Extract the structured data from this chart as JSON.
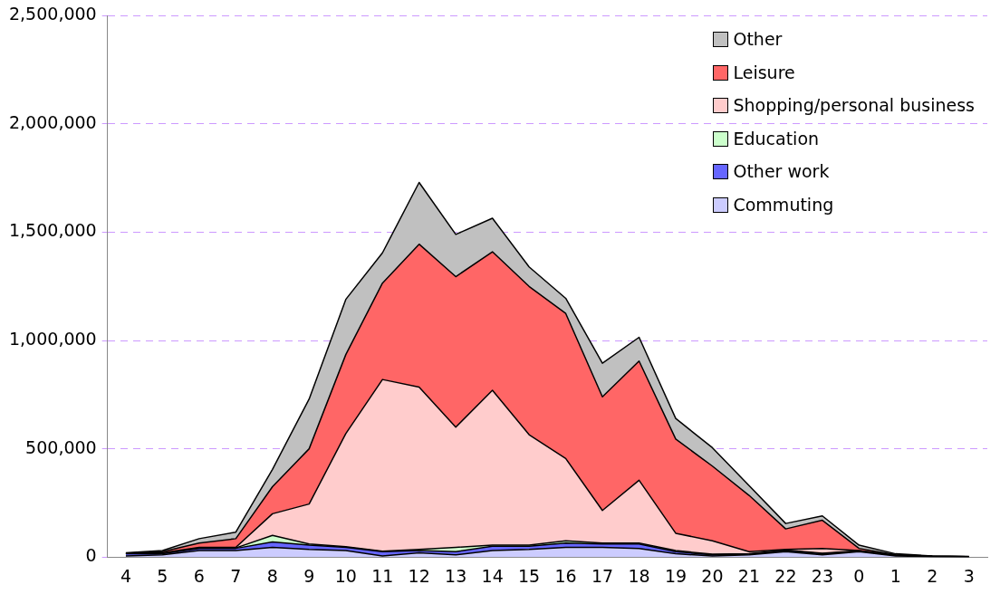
{
  "chart_data": {
    "type": "area",
    "stacked": true,
    "categories": [
      "4",
      "5",
      "6",
      "7",
      "8",
      "9",
      "10",
      "11",
      "12",
      "13",
      "14",
      "15",
      "16",
      "17",
      "18",
      "19",
      "20",
      "21",
      "22",
      "23",
      "0",
      "1",
      "2",
      "3"
    ],
    "ylim": [
      0,
      2500000
    ],
    "yticks": [
      0,
      {
        "value": 500000,
        "label": "500,000"
      },
      {
        "value": 1000000,
        "label": "1,000,000"
      },
      {
        "value": 1500000,
        "label": "1,500,000"
      },
      {
        "value": 2000000,
        "label": "2,000,000"
      },
      {
        "value": 2500000,
        "label": "2,500,000"
      }
    ],
    "grid": "y",
    "legend": "top right",
    "series": [
      {
        "name": "Commuting",
        "color": "#ccccff",
        "values": [
          5000,
          10000,
          30000,
          30000,
          45000,
          35000,
          30000,
          5000,
          20000,
          10000,
          30000,
          35000,
          45000,
          45000,
          40000,
          15000,
          5000,
          10000,
          25000,
          10000,
          25000,
          5000,
          2000,
          1000
        ]
      },
      {
        "name": "Other work",
        "color": "#6666ff",
        "values": [
          10000,
          5000,
          10000,
          10000,
          25000,
          20000,
          15000,
          20000,
          10000,
          15000,
          20000,
          15000,
          20000,
          15000,
          20000,
          10000,
          5000,
          3000,
          5000,
          5000,
          2000,
          2000,
          1000,
          1000
        ]
      },
      {
        "name": "Education",
        "color": "#ccffcc",
        "values": [
          0,
          0,
          2000,
          2000,
          30000,
          5000,
          3000,
          2000,
          5000,
          20000,
          5000,
          5000,
          10000,
          5000,
          5000,
          5000,
          3000,
          2000,
          2000,
          3000,
          2000,
          0,
          0,
          0
        ]
      },
      {
        "name": "Shopping/personal business",
        "color": "#ffcccc",
        "values": [
          2000,
          5000,
          3000,
          3000,
          100000,
          185000,
          522000,
          793000,
          750000,
          555000,
          715000,
          510000,
          380000,
          150000,
          290000,
          80000,
          62000,
          10000,
          3000,
          22000,
          1000,
          3000,
          0,
          0
        ]
      },
      {
        "name": "Leisure",
        "color": "#ff6666",
        "values": [
          1000,
          5000,
          20000,
          40000,
          125000,
          255000,
          365000,
          445000,
          660000,
          695000,
          640000,
          685000,
          670000,
          525000,
          550000,
          435000,
          345000,
          260000,
          95000,
          130000,
          10000,
          0,
          1000,
          0
        ]
      },
      {
        "name": "Other",
        "color": "#c0c0c0",
        "values": [
          2000,
          5000,
          20000,
          30000,
          80000,
          230000,
          255000,
          140000,
          285000,
          195000,
          155000,
          90000,
          70000,
          155000,
          110000,
          95000,
          85000,
          45000,
          25000,
          20000,
          15000,
          5000,
          1000,
          1000
        ]
      }
    ]
  }
}
